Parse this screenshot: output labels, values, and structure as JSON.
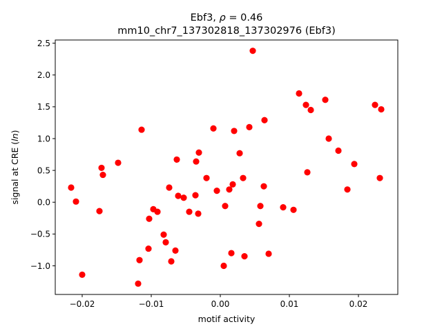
{
  "chart_data": {
    "type": "scatter",
    "title_line1_prefix": "Ebf3, ",
    "title_line1_rho": "ρ",
    "title_line1_suffix": " = 0.46",
    "title_line2": "mm10_chr7_137302818_137302976 (Ebf3)",
    "xlabel": "motif activity",
    "ylabel": "signal at CRE (ln)",
    "ylabel_prefix": "signal at CRE (",
    "ylabel_italic": "ln",
    "ylabel_suffix": ")",
    "xlim": [
      -0.0239,
      0.0257
    ],
    "ylim": [
      -1.45,
      2.55
    ],
    "x_ticks": [
      {
        "value": -0.02,
        "label": "−0.02"
      },
      {
        "value": -0.01,
        "label": "−0.01"
      },
      {
        "value": 0.0,
        "label": "0.00"
      },
      {
        "value": 0.01,
        "label": "0.01"
      },
      {
        "value": 0.02,
        "label": "0.02"
      }
    ],
    "y_ticks": [
      {
        "value": -1.0,
        "label": "−1.0"
      },
      {
        "value": -0.5,
        "label": "−0.5"
      },
      {
        "value": 0.0,
        "label": "0.0"
      },
      {
        "value": 0.5,
        "label": "0.5"
      },
      {
        "value": 1.0,
        "label": "1.0"
      },
      {
        "value": 1.5,
        "label": "1.5"
      },
      {
        "value": 2.0,
        "label": "2.0"
      },
      {
        "value": 2.5,
        "label": "2.5"
      }
    ],
    "grid": false,
    "marker_color": "#ff0000",
    "points": [
      {
        "x": -0.0216,
        "y": 0.23
      },
      {
        "x": -0.0209,
        "y": 0.01
      },
      {
        "x": -0.02,
        "y": -1.14
      },
      {
        "x": -0.0175,
        "y": -0.14
      },
      {
        "x": -0.0172,
        "y": 0.54
      },
      {
        "x": -0.017,
        "y": 0.43
      },
      {
        "x": -0.0148,
        "y": 0.62
      },
      {
        "x": -0.0119,
        "y": -1.28
      },
      {
        "x": -0.0117,
        "y": -0.91
      },
      {
        "x": -0.0114,
        "y": 1.14
      },
      {
        "x": -0.0104,
        "y": -0.73
      },
      {
        "x": -0.0103,
        "y": -0.26
      },
      {
        "x": -0.0097,
        "y": -0.11
      },
      {
        "x": -0.0091,
        "y": -0.15
      },
      {
        "x": -0.0082,
        "y": -0.51
      },
      {
        "x": -0.0079,
        "y": -0.63
      },
      {
        "x": -0.0074,
        "y": 0.23
      },
      {
        "x": -0.0071,
        "y": -0.93
      },
      {
        "x": -0.0065,
        "y": -0.76
      },
      {
        "x": -0.0063,
        "y": 0.67
      },
      {
        "x": -0.0061,
        "y": 0.1
      },
      {
        "x": -0.0053,
        "y": 0.07
      },
      {
        "x": -0.0045,
        "y": -0.15
      },
      {
        "x": -0.0036,
        "y": 0.11
      },
      {
        "x": -0.0035,
        "y": 0.64
      },
      {
        "x": -0.0032,
        "y": -0.18
      },
      {
        "x": -0.0031,
        "y": 0.78
      },
      {
        "x": -0.002,
        "y": 0.38
      },
      {
        "x": -0.001,
        "y": 1.16
      },
      {
        "x": -0.0005,
        "y": 0.18
      },
      {
        "x": 0.0005,
        "y": -1.0
      },
      {
        "x": 0.0007,
        "y": -0.06
      },
      {
        "x": 0.0013,
        "y": 0.2
      },
      {
        "x": 0.0016,
        "y": -0.8
      },
      {
        "x": 0.0018,
        "y": 0.28
      },
      {
        "x": 0.002,
        "y": 1.12
      },
      {
        "x": 0.0028,
        "y": 0.77
      },
      {
        "x": 0.0033,
        "y": 0.38
      },
      {
        "x": 0.0035,
        "y": -0.85
      },
      {
        "x": 0.0042,
        "y": 1.18
      },
      {
        "x": 0.0047,
        "y": 2.38
      },
      {
        "x": 0.0056,
        "y": -0.34
      },
      {
        "x": 0.0058,
        "y": -0.06
      },
      {
        "x": 0.0063,
        "y": 0.25
      },
      {
        "x": 0.0064,
        "y": 1.29
      },
      {
        "x": 0.007,
        "y": -0.81
      },
      {
        "x": 0.0091,
        "y": -0.08
      },
      {
        "x": 0.0106,
        "y": -0.12
      },
      {
        "x": 0.0114,
        "y": 1.71
      },
      {
        "x": 0.0124,
        "y": 1.53
      },
      {
        "x": 0.0126,
        "y": 0.47
      },
      {
        "x": 0.0131,
        "y": 1.45
      },
      {
        "x": 0.0152,
        "y": 1.61
      },
      {
        "x": 0.0157,
        "y": 1.0
      },
      {
        "x": 0.0171,
        "y": 0.81
      },
      {
        "x": 0.0184,
        "y": 0.2
      },
      {
        "x": 0.0194,
        "y": 0.6
      },
      {
        "x": 0.0224,
        "y": 1.53
      },
      {
        "x": 0.0231,
        "y": 0.38
      },
      {
        "x": 0.0233,
        "y": 1.46
      }
    ]
  }
}
